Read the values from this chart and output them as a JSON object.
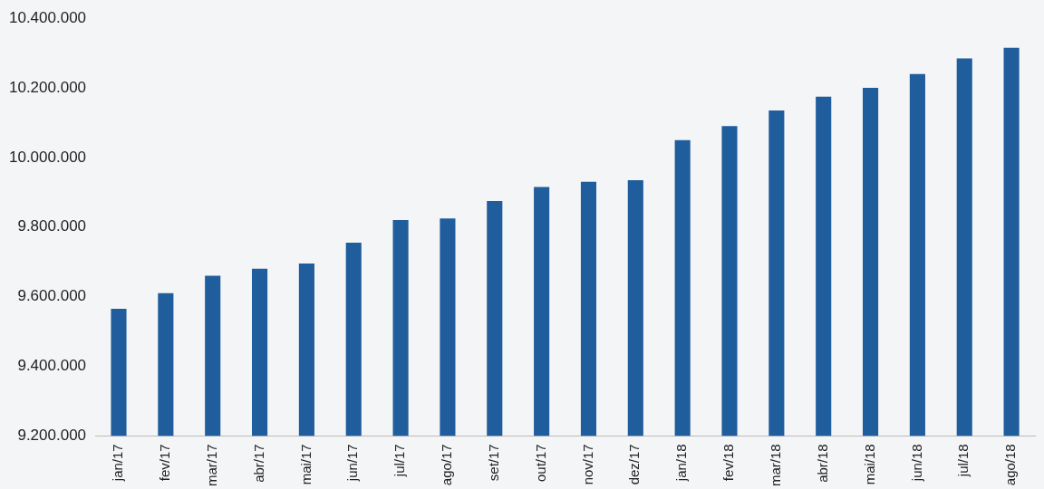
{
  "chart_data": {
    "type": "bar",
    "categories": [
      "jan/17",
      "fev/17",
      "mar/17",
      "abr/17",
      "mai/17",
      "jun/17",
      "jul/17",
      "ago/17",
      "set/17",
      "out/17",
      "nov/17",
      "dez/17",
      "jan/18",
      "fev/18",
      "mar/18",
      "abr/18",
      "mai/18",
      "jun/18",
      "jul/18",
      "ago/18"
    ],
    "values": [
      9565000,
      9610000,
      9660000,
      9680000,
      9695000,
      9755000,
      9820000,
      9825000,
      9875000,
      9915000,
      9930000,
      9935000,
      10050000,
      10090000,
      10135000,
      10175000,
      10200000,
      10240000,
      10285000,
      10315000
    ],
    "color": "#1f5d9c",
    "ylim": [
      9200000,
      10400000
    ],
    "yticks": [
      {
        "value": 9200000,
        "label": "9.200.000"
      },
      {
        "value": 9400000,
        "label": "9.400.000"
      },
      {
        "value": 9600000,
        "label": "9.600.000"
      },
      {
        "value": 9800000,
        "label": "9.800.000"
      },
      {
        "value": 10000000,
        "label": "10.000.000"
      },
      {
        "value": 10200000,
        "label": "10.200.000"
      },
      {
        "value": 10400000,
        "label": "10.400.000"
      }
    ],
    "grid": false,
    "legend": false
  }
}
